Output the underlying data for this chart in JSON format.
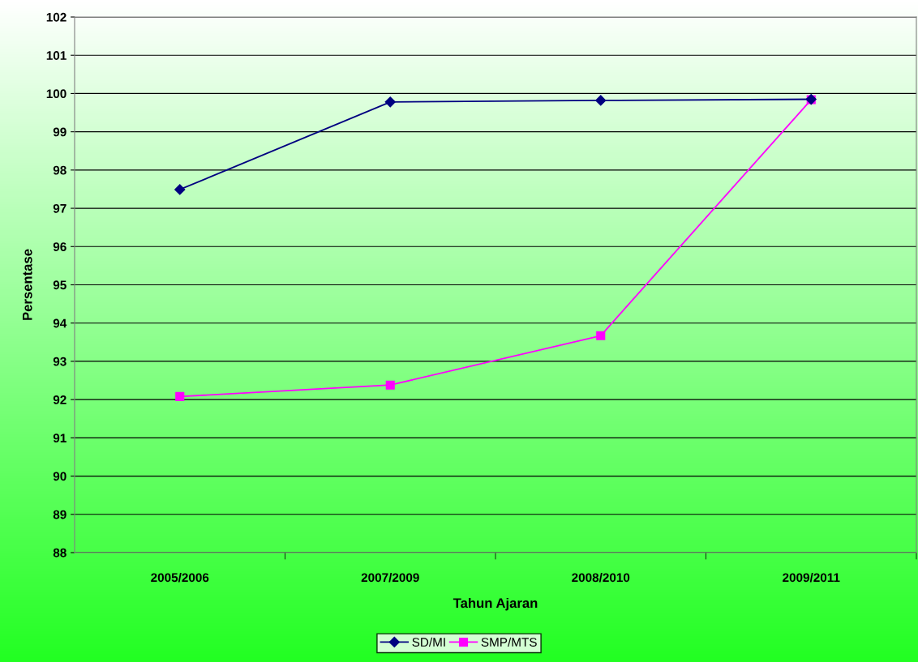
{
  "chart_data": {
    "type": "line",
    "xlabel": "Tahun Ajaran",
    "ylabel": "Persentase",
    "categories": [
      "2005/2006",
      "2007/2009",
      "2008/2010",
      "2009/2011"
    ],
    "series": [
      {
        "name": "SD/MI",
        "color": "#000080",
        "marker": "diamond",
        "values": [
          97.49,
          99.78,
          99.82,
          99.85
        ]
      },
      {
        "name": "SMP/MTS",
        "color": "#ff00ff",
        "marker": "square",
        "values": [
          92.08,
          92.38,
          93.67,
          99.84
        ]
      }
    ],
    "ylim": [
      88,
      102
    ],
    "yticks": [
      88,
      89,
      90,
      91,
      92,
      93,
      94,
      95,
      96,
      97,
      98,
      99,
      100,
      101,
      102
    ],
    "grid": "y",
    "legend": "bottom",
    "line_style": "solid"
  }
}
